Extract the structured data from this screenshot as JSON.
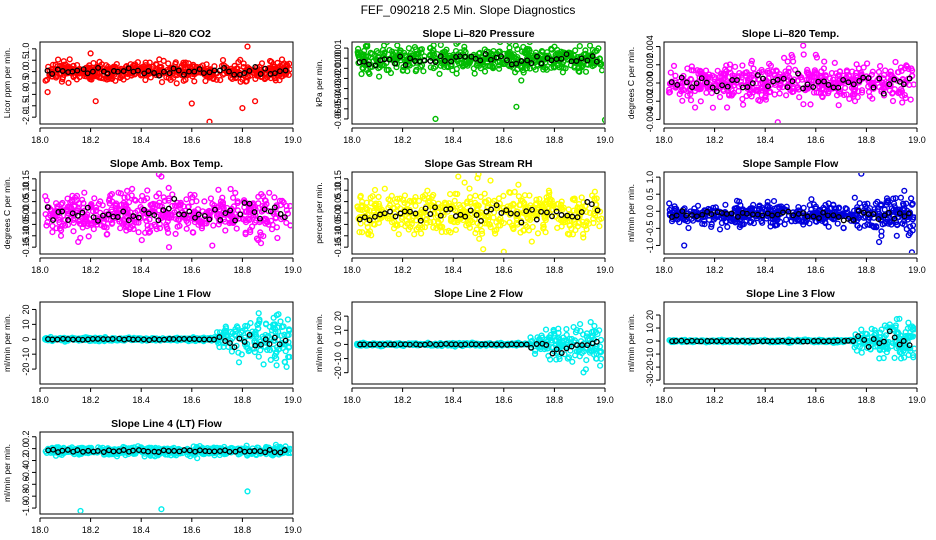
{
  "figure": {
    "title": "FEF_090218  2.5 Min. Slope Diagnostics",
    "colors": {
      "overlay": "#000000",
      "frame": "#000000"
    }
  },
  "chart_data": [
    {
      "type": "scatter",
      "title": "Slope Li–820 CO2",
      "ylabel": "Licor ppm per min.",
      "color": "#ff0000",
      "xlim": [
        18.0,
        19.0
      ],
      "xticks": [
        "18.0",
        "18.2",
        "18.4",
        "18.6",
        "18.8",
        "19.0"
      ],
      "ylim": [
        -2.3,
        1.3
      ],
      "yticks": [
        -2.0,
        -1.5,
        -1.0,
        -0.5,
        0.0,
        0.5,
        1.0
      ],
      "yticklabels": [
        "-2.0",
        "-1.5",
        "-1.0",
        "-0.5",
        "0.0",
        "0.5",
        "1.0"
      ],
      "center": 0.0,
      "spread": 0.22,
      "outliers": [
        [
          18.03,
          -0.9
        ],
        [
          18.22,
          -1.3
        ],
        [
          18.6,
          -1.4
        ],
        [
          18.67,
          -2.2
        ],
        [
          18.8,
          -1.6
        ],
        [
          18.85,
          -1.3
        ],
        [
          18.82,
          1.1
        ],
        [
          18.2,
          0.8
        ]
      ]
    },
    {
      "type": "scatter",
      "title": "Slope Li–820 Pressure",
      "ylabel": "kPa per min.",
      "color": "#00bb00",
      "xlim": [
        18.0,
        19.0
      ],
      "xticks": [
        "18.0",
        "18.2",
        "18.4",
        "18.6",
        "18.8",
        "19.0"
      ],
      "ylim": [
        -0.065,
        0.016
      ],
      "yticks": [
        -0.06,
        -0.05,
        -0.04,
        -0.03,
        -0.02,
        -0.01,
        0.0,
        0.01
      ],
      "yticklabels": [
        "-0.06",
        "-0.05",
        "-0.04",
        "-0.03",
        "-0.02",
        "-0.01",
        "0.00",
        "0.01"
      ],
      "center": -0.001,
      "spread": 0.007,
      "outliers": [
        [
          18.33,
          -0.06
        ],
        [
          18.65,
          -0.048
        ],
        [
          19.0,
          -0.061
        ],
        [
          18.06,
          0.013
        ]
      ]
    },
    {
      "type": "scatter",
      "title": "Slope Li–820 Temp.",
      "ylabel": "degrees C per min.",
      "color": "#ff00ff",
      "xlim": [
        18.0,
        19.0
      ],
      "xticks": [
        "18.0",
        "18.2",
        "18.4",
        "18.6",
        "18.8",
        "19.0"
      ],
      "ylim": [
        -0.0045,
        0.0045
      ],
      "yticks": [
        -0.004,
        -0.002,
        0.0,
        0.002,
        0.004
      ],
      "yticklabels": [
        "-0.004",
        "-0.002",
        "0.000",
        "0.002",
        "0.004"
      ],
      "center": 0.0,
      "spread": 0.0012,
      "outliers": [
        [
          18.45,
          -0.0043
        ],
        [
          18.55,
          0.0041
        ],
        [
          18.6,
          0.0031
        ]
      ]
    },
    {
      "type": "scatter",
      "title": "Slope Amb. Box Temp.",
      "ylabel": "degrees C per min.",
      "color": "#ff00ff",
      "xlim": [
        18.0,
        19.0
      ],
      "xticks": [
        "18.0",
        "18.2",
        "18.4",
        "18.6",
        "18.8",
        "19.0"
      ],
      "ylim": [
        -0.18,
        0.18
      ],
      "yticks": [
        -0.15,
        -0.1,
        -0.05,
        0.0,
        0.05,
        0.1,
        0.15
      ],
      "yticklabels": [
        "-0.15",
        "-0.10",
        "-0.05",
        "0.00",
        "0.05",
        "0.10",
        "0.15"
      ],
      "center": 0.0,
      "spread": 0.05,
      "outliers": [
        [
          18.47,
          0.17
        ],
        [
          18.48,
          0.16
        ],
        [
          18.51,
          -0.15
        ]
      ]
    },
    {
      "type": "scatter",
      "title": "Slope Gas Stream RH",
      "ylabel": "percent per min.",
      "color": "#ffff00",
      "xlim": [
        18.0,
        19.0
      ],
      "xticks": [
        "18.0",
        "18.2",
        "18.4",
        "18.6",
        "18.8",
        "19.0"
      ],
      "ylim": [
        -0.18,
        0.18
      ],
      "yticks": [
        -0.15,
        -0.1,
        -0.05,
        0.0,
        0.05,
        0.1,
        0.15
      ],
      "yticklabels": [
        "-0.15",
        "-0.10",
        "-0.05",
        "0.00",
        "0.05",
        "0.10",
        "0.15"
      ],
      "center": 0.0,
      "spread": 0.055,
      "outliers": [
        [
          18.5,
          0.17
        ],
        [
          18.6,
          -0.17
        ],
        [
          18.42,
          0.16
        ]
      ]
    },
    {
      "type": "scatter",
      "title": "Slope Sample Flow",
      "ylabel": "ml/min per min.",
      "color": "#0000dd",
      "xlim": [
        18.0,
        19.0
      ],
      "xticks": [
        "18.0",
        "18.2",
        "18.4",
        "18.6",
        "18.8",
        "19.0"
      ],
      "ylim": [
        -1.25,
        1.15
      ],
      "yticks": [
        -1.0,
        -0.5,
        0.0,
        0.5,
        1.0
      ],
      "yticklabels": [
        "-1.0",
        "-0.5",
        "0.0",
        "0.5",
        "1.0"
      ],
      "center": -0.1,
      "spread": 0.17,
      "outliers": [
        [
          18.78,
          1.1
        ],
        [
          18.08,
          -1.0
        ],
        [
          18.85,
          -0.9
        ],
        [
          18.98,
          -1.2
        ],
        [
          18.95,
          0.6
        ]
      ],
      "late_spread": 0.4
    },
    {
      "type": "scatter",
      "title": "Slope Line 1 Flow",
      "ylabel": "ml/min per min.",
      "color": "#00eeee",
      "xlim": [
        18.0,
        19.0
      ],
      "xticks": [
        "18.0",
        "18.2",
        "18.4",
        "18.6",
        "18.8",
        "19.0"
      ],
      "ylim": [
        -30,
        25
      ],
      "yticks": [
        -20,
        -10,
        0,
        10,
        20
      ],
      "yticklabels": [
        "-20",
        "-10",
        "0",
        "10",
        "20"
      ],
      "center": 0.0,
      "spread": 0.6,
      "late_spread": 12,
      "late_start": 18.7
    },
    {
      "type": "scatter",
      "title": "Slope Line 2 Flow",
      "ylabel": "ml/min per min.",
      "color": "#00eeee",
      "xlim": [
        18.0,
        19.0
      ],
      "xticks": [
        "18.0",
        "18.2",
        "18.4",
        "18.6",
        "18.8",
        "19.0"
      ],
      "ylim": [
        -28,
        30
      ],
      "yticks": [
        -20,
        -10,
        0,
        10,
        20
      ],
      "yticklabels": [
        "-20",
        "-10",
        "0",
        "10",
        "20"
      ],
      "center": 0.0,
      "spread": 0.5,
      "late_spread": 10,
      "late_start": 18.7
    },
    {
      "type": "scatter",
      "title": "Slope Line 3 Flow",
      "ylabel": "ml/min per min.",
      "color": "#00eeee",
      "xlim": [
        18.0,
        19.0
      ],
      "xticks": [
        "18.0",
        "18.2",
        "18.4",
        "18.6",
        "18.8",
        "19.0"
      ],
      "ylim": [
        -33,
        30
      ],
      "yticks": [
        -30,
        -20,
        -10,
        0,
        10,
        20
      ],
      "yticklabels": [
        "-30",
        "-20",
        "-10",
        "0",
        "10",
        "20"
      ],
      "center": 0.0,
      "spread": 0.5,
      "late_spread": 11,
      "late_start": 18.75
    },
    {
      "type": "scatter",
      "title": "Slope Line 4 (LT) Flow",
      "ylabel": "ml/min per min.",
      "color": "#00eeee",
      "xlim": [
        18.0,
        19.0
      ],
      "xticks": [
        "18.0",
        "18.2",
        "18.4",
        "18.6",
        "18.8",
        "19.0"
      ],
      "ylim": [
        -1.1,
        0.28
      ],
      "yticks": [
        -1.0,
        -0.8,
        -0.6,
        -0.4,
        -0.2,
        0.0,
        0.2
      ],
      "yticklabels": [
        "-1.0",
        "-0.8",
        "-0.6",
        "-0.4",
        "-0.2",
        "0.0",
        "0.2"
      ],
      "center": -0.04,
      "spread": 0.04,
      "outliers": [
        [
          18.16,
          -1.05
        ],
        [
          18.48,
          -1.02
        ],
        [
          18.82,
          -0.72
        ]
      ]
    }
  ]
}
